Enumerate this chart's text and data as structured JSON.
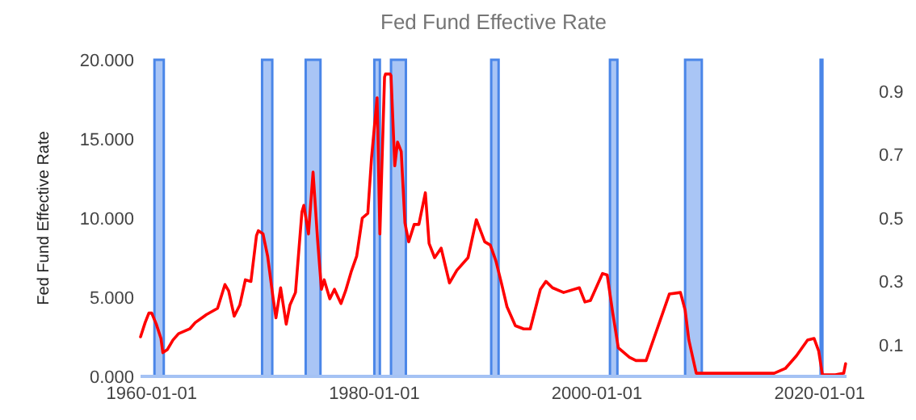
{
  "chart_data": {
    "type": "line",
    "title": "Fed Fund Effective Rate",
    "ylabel": "Fed Fund Effective Rate",
    "x": [
      "1959-01",
      "1959-06",
      "1959-10",
      "1960-01",
      "1960-06",
      "1960-11",
      "1961-01",
      "1961-06",
      "1961-12",
      "1962-06",
      "1963-06",
      "1963-12",
      "1964-12",
      "1965-12",
      "1966-08",
      "1966-12",
      "1967-06",
      "1967-12",
      "1968-06",
      "1968-12",
      "1969-06",
      "1969-08",
      "1970-01",
      "1970-06",
      "1970-12",
      "1971-03",
      "1971-08",
      "1972-02",
      "1972-06",
      "1972-12",
      "1973-07",
      "1973-09",
      "1974-02",
      "1974-07",
      "1974-12",
      "1975-04",
      "1975-07",
      "1976-01",
      "1976-06",
      "1977-01",
      "1977-06",
      "1977-12",
      "1978-06",
      "1978-12",
      "1979-06",
      "1979-10",
      "1980-04",
      "1980-07",
      "1980-12",
      "1981-01",
      "1981-06",
      "1981-07",
      "1981-11",
      "1982-02",
      "1982-06",
      "1982-10",
      "1983-02",
      "1983-08",
      "1984-01",
      "1984-08",
      "1984-12",
      "1985-06",
      "1986-01",
      "1986-10",
      "1987-06",
      "1988-06",
      "1989-03",
      "1989-12",
      "1990-06",
      "1990-12",
      "1991-06",
      "1991-12",
      "1992-09",
      "1993-06",
      "1994-01",
      "1994-12",
      "1995-06",
      "1996-01",
      "1997-01",
      "1998-06",
      "1998-12",
      "1999-06",
      "2000-07",
      "2000-12",
      "2001-06",
      "2001-12",
      "2002-12",
      "2003-07",
      "2004-06",
      "2006-07",
      "2007-07",
      "2007-12",
      "2008-04",
      "2008-12",
      "2009-06",
      "2012-06",
      "2015-12",
      "2016-12",
      "2017-12",
      "2018-12",
      "2019-07",
      "2019-12",
      "2020-04",
      "2021-06",
      "2022-03",
      "2022-05"
    ],
    "series": [
      {
        "color": "#ff0000",
        "values": [
          2.5,
          3.4,
          4.0,
          4.0,
          3.3,
          2.4,
          1.5,
          1.7,
          2.3,
          2.7,
          3.0,
          3.4,
          3.9,
          4.3,
          5.8,
          5.4,
          3.8,
          4.5,
          6.1,
          6.0,
          8.9,
          9.2,
          9.0,
          7.6,
          4.9,
          3.7,
          5.6,
          3.3,
          4.5,
          5.3,
          10.4,
          10.8,
          9.0,
          12.9,
          8.5,
          5.5,
          6.1,
          4.9,
          5.5,
          4.6,
          5.4,
          6.6,
          7.6,
          10.0,
          10.3,
          13.8,
          17.6,
          9.0,
          18.9,
          19.1,
          19.1,
          19.0,
          13.3,
          14.8,
          14.2,
          9.7,
          8.5,
          9.6,
          9.6,
          11.6,
          8.4,
          7.5,
          8.1,
          5.9,
          6.7,
          7.5,
          9.9,
          8.5,
          8.3,
          7.3,
          5.9,
          4.4,
          3.2,
          3.0,
          3.0,
          5.5,
          6.0,
          5.6,
          5.3,
          5.6,
          4.7,
          4.8,
          6.5,
          6.4,
          4.0,
          1.8,
          1.2,
          1.0,
          1.0,
          5.2,
          5.3,
          4.2,
          2.3,
          0.2,
          0.2,
          0.2,
          0.2,
          0.5,
          1.3,
          2.3,
          2.4,
          1.6,
          0.1,
          0.1,
          0.2,
          0.8
        ]
      }
    ],
    "xlim": [
      "1959-01-01",
      "2022-06-01"
    ],
    "xticks": [
      {
        "value": "1960-01-01",
        "label": "1960-01-01"
      },
      {
        "value": "1980-01-01",
        "label": "1980-01-01"
      },
      {
        "value": "2000-01-01",
        "label": "2000-01-01"
      },
      {
        "value": "2020-01-01",
        "label": "2020-01-01"
      }
    ],
    "ylim": [
      0,
      20
    ],
    "yticks": [
      {
        "value": 0,
        "label": "0.000"
      },
      {
        "value": 5,
        "label": "5.000"
      },
      {
        "value": 10,
        "label": "10.000"
      },
      {
        "value": 15,
        "label": "15.000"
      },
      {
        "value": 20,
        "label": "20.000"
      }
    ],
    "y2lim": [
      0,
      1
    ],
    "y2ticks": [
      0.1,
      0.3,
      0.5,
      0.7,
      0.9
    ],
    "bands": [
      {
        "axis": "x",
        "from": "1960-04-01",
        "to": "1961-02-01",
        "color": "#a4c2f4"
      },
      {
        "axis": "x",
        "from": "1969-12-01",
        "to": "1970-11-01",
        "color": "#a4c2f4"
      },
      {
        "axis": "x",
        "from": "1973-11-01",
        "to": "1975-03-01",
        "color": "#a4c2f4"
      },
      {
        "axis": "x",
        "from": "1980-01-01",
        "to": "1980-07-01",
        "color": "#a4c2f4"
      },
      {
        "axis": "x",
        "from": "1981-07-01",
        "to": "1982-11-01",
        "color": "#a4c2f4"
      },
      {
        "axis": "x",
        "from": "1990-07-01",
        "to": "1991-03-01",
        "color": "#a4c2f4"
      },
      {
        "axis": "x",
        "from": "2001-03-01",
        "to": "2001-11-01",
        "color": "#a4c2f4"
      },
      {
        "axis": "x",
        "from": "2007-12-01",
        "to": "2009-06-01",
        "color": "#a4c2f4"
      },
      {
        "axis": "x",
        "from": "2020-02-01",
        "to": "2020-04-01",
        "color": "#a4c2f4"
      }
    ],
    "grid": false,
    "marker": "none",
    "line_style": "solid"
  }
}
